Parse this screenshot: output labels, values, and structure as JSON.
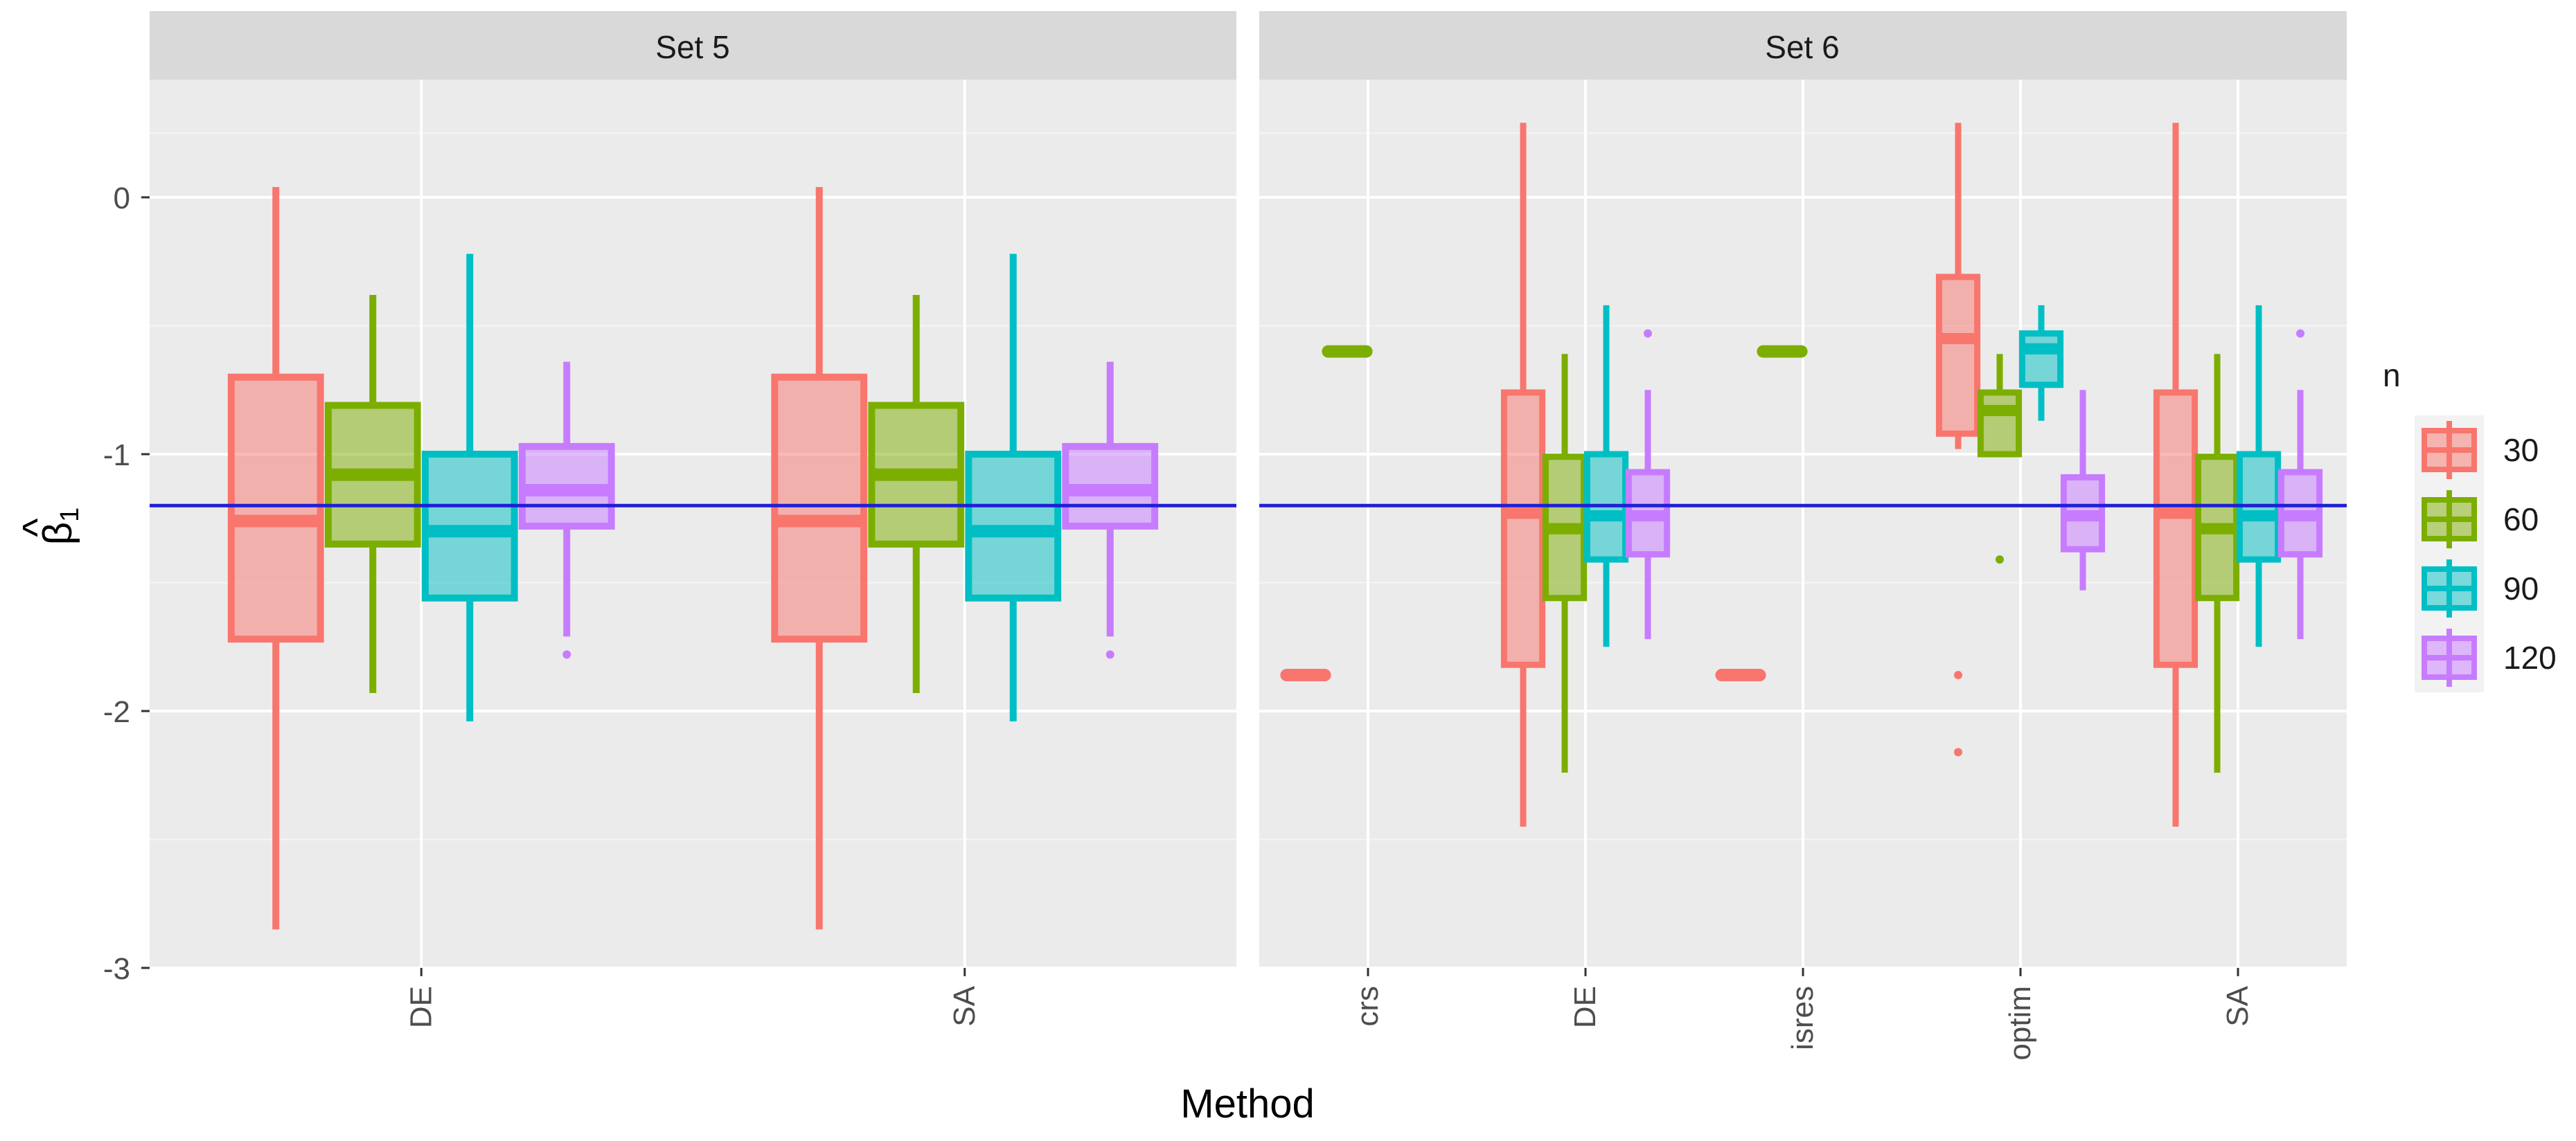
{
  "chart_data": {
    "type": "boxplot",
    "xlabel": "Method",
    "ylabel": "β̂1",
    "ylabel_base": "β",
    "ylabel_hat": "^",
    "ylabel_sub": "1",
    "ylim": [
      -3,
      0.45
    ],
    "yticks": [
      0,
      -1,
      -2,
      -3
    ],
    "ytick_labels": [
      "0",
      "-1",
      "-2",
      "-3"
    ],
    "reference_line": {
      "value": -1.2,
      "color": "#1f1fd6"
    },
    "legend": {
      "title": "n",
      "entries": [
        {
          "label": "30",
          "color": "#f8766d"
        },
        {
          "label": "60",
          "color": "#7cae00"
        },
        {
          "label": "90",
          "color": "#00bfc4"
        },
        {
          "label": "120",
          "color": "#c77cff"
        }
      ]
    },
    "panels": [
      {
        "strip": "Set 5",
        "categories": [
          "DE",
          "SA"
        ],
        "boxes": [
          {
            "method": "DE",
            "n": "30",
            "whisker_low": -2.85,
            "q1": -1.72,
            "median": -1.26,
            "q3": -0.7,
            "whisker_high": 0.04,
            "outliers": []
          },
          {
            "method": "DE",
            "n": "60",
            "whisker_low": -1.93,
            "q1": -1.35,
            "median": -1.08,
            "q3": -0.81,
            "whisker_high": -0.38,
            "outliers": []
          },
          {
            "method": "DE",
            "n": "90",
            "whisker_low": -2.04,
            "q1": -1.56,
            "median": -1.3,
            "q3": -1.0,
            "whisker_high": -0.22,
            "outliers": []
          },
          {
            "method": "DE",
            "n": "120",
            "whisker_low": -1.71,
            "q1": -1.28,
            "median": -1.14,
            "q3": -0.97,
            "whisker_high": -0.64,
            "outliers": [
              -1.78
            ]
          },
          {
            "method": "SA",
            "n": "30",
            "whisker_low": -2.85,
            "q1": -1.72,
            "median": -1.26,
            "q3": -0.7,
            "whisker_high": 0.04,
            "outliers": []
          },
          {
            "method": "SA",
            "n": "60",
            "whisker_low": -1.93,
            "q1": -1.35,
            "median": -1.08,
            "q3": -0.81,
            "whisker_high": -0.38,
            "outliers": []
          },
          {
            "method": "SA",
            "n": "90",
            "whisker_low": -2.04,
            "q1": -1.56,
            "median": -1.3,
            "q3": -1.0,
            "whisker_high": -0.22,
            "outliers": []
          },
          {
            "method": "SA",
            "n": "120",
            "whisker_low": -1.71,
            "q1": -1.28,
            "median": -1.14,
            "q3": -0.97,
            "whisker_high": -0.64,
            "outliers": [
              -1.78
            ]
          }
        ]
      },
      {
        "strip": "Set 6",
        "categories": [
          "crs",
          "DE",
          "isres",
          "optim",
          "SA"
        ],
        "boxes": [
          {
            "method": "crs",
            "n": "30",
            "whisker_low": -1.86,
            "q1": -1.86,
            "median": -1.86,
            "q3": -1.86,
            "whisker_high": -1.86,
            "outliers": []
          },
          {
            "method": "crs",
            "n": "60",
            "whisker_low": -0.6,
            "q1": -0.6,
            "median": -0.6,
            "q3": -0.6,
            "whisker_high": -0.6,
            "outliers": []
          },
          {
            "method": "DE",
            "n": "30",
            "whisker_low": -2.45,
            "q1": -1.82,
            "median": -1.23,
            "q3": -0.76,
            "whisker_high": 0.29,
            "outliers": []
          },
          {
            "method": "DE",
            "n": "60",
            "whisker_low": -2.24,
            "q1": -1.56,
            "median": -1.29,
            "q3": -1.01,
            "whisker_high": -0.61,
            "outliers": []
          },
          {
            "method": "DE",
            "n": "90",
            "whisker_low": -1.75,
            "q1": -1.41,
            "median": -1.24,
            "q3": -1.0,
            "whisker_high": -0.42,
            "outliers": []
          },
          {
            "method": "DE",
            "n": "120",
            "whisker_low": -1.72,
            "q1": -1.39,
            "median": -1.24,
            "q3": -1.07,
            "whisker_high": -0.75,
            "outliers": [
              -0.53
            ]
          },
          {
            "method": "isres",
            "n": "30",
            "whisker_low": -1.86,
            "q1": -1.86,
            "median": -1.86,
            "q3": -1.86,
            "whisker_high": -1.86,
            "outliers": []
          },
          {
            "method": "isres",
            "n": "60",
            "whisker_low": -0.6,
            "q1": -0.6,
            "median": -0.6,
            "q3": -0.6,
            "whisker_high": -0.6,
            "outliers": []
          },
          {
            "method": "optim",
            "n": "30",
            "whisker_low": -0.98,
            "q1": -0.92,
            "median": -0.55,
            "q3": -0.31,
            "whisker_high": 0.29,
            "outliers": [
              -1.86,
              -2.16
            ]
          },
          {
            "method": "optim",
            "n": "60",
            "whisker_low": -1.0,
            "q1": -1.0,
            "median": -0.83,
            "q3": -0.76,
            "whisker_high": -0.61,
            "outliers": [
              -1.41
            ]
          },
          {
            "method": "optim",
            "n": "90",
            "whisker_low": -0.87,
            "q1": -0.73,
            "median": -0.59,
            "q3": -0.53,
            "whisker_high": -0.42,
            "outliers": []
          },
          {
            "method": "optim",
            "n": "120",
            "whisker_low": -1.53,
            "q1": -1.37,
            "median": -1.24,
            "q3": -1.09,
            "whisker_high": -0.75,
            "outliers": []
          },
          {
            "method": "SA",
            "n": "30",
            "whisker_low": -2.45,
            "q1": -1.82,
            "median": -1.23,
            "q3": -0.76,
            "whisker_high": 0.29,
            "outliers": []
          },
          {
            "method": "SA",
            "n": "60",
            "whisker_low": -2.24,
            "q1": -1.56,
            "median": -1.29,
            "q3": -1.01,
            "whisker_high": -0.61,
            "outliers": []
          },
          {
            "method": "SA",
            "n": "90",
            "whisker_low": -1.75,
            "q1": -1.41,
            "median": -1.24,
            "q3": -1.0,
            "whisker_high": -0.42,
            "outliers": []
          },
          {
            "method": "SA",
            "n": "120",
            "whisker_low": -1.72,
            "q1": -1.39,
            "median": -1.24,
            "q3": -1.07,
            "whisker_high": -0.75,
            "outliers": [
              -0.53
            ]
          }
        ]
      }
    ]
  }
}
